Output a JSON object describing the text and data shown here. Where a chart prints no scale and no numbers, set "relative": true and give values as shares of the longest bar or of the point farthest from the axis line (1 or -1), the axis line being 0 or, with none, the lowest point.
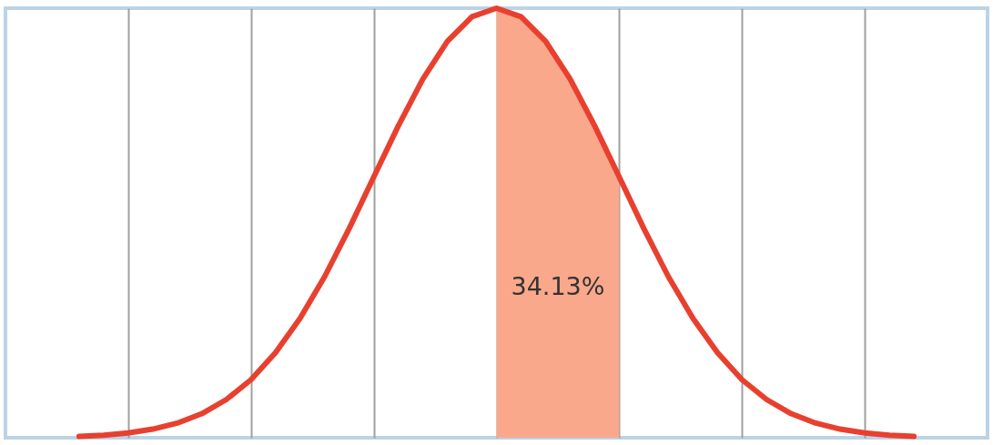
{
  "chart_data": {
    "type": "line",
    "relative": true,
    "categories": [
      null,
      null,
      null,
      null,
      null,
      null,
      null,
      null,
      null,
      null,
      null,
      null,
      null,
      null,
      null,
      null,
      null,
      null,
      null,
      null,
      null,
      null,
      null,
      null,
      null,
      null,
      null,
      null,
      null,
      null,
      null,
      null,
      null,
      null,
      null
    ],
    "tick_labels": false,
    "grid": "x",
    "series": [
      {
        "color": "#e8402f",
        "values": [
          0.003,
          0.006,
          0.011,
          0.02,
          0.034,
          0.056,
          0.089,
          0.135,
          0.198,
          0.278,
          0.375,
          0.487,
          0.607,
          0.726,
          0.835,
          0.923,
          0.98,
          1,
          0.98,
          0.923,
          0.835,
          0.726,
          0.607,
          0.487,
          0.375,
          0.278,
          0.198,
          0.135,
          0.089,
          0.056,
          0.034,
          0.02,
          0.011,
          0.006,
          0.003
        ]
      },
      {
        "type": "area",
        "color": "#f9a88c",
        "values": [
          null,
          null,
          null,
          null,
          null,
          null,
          null,
          null,
          null,
          null,
          null,
          null,
          null,
          null,
          null,
          null,
          null,
          1,
          0.98,
          0.923,
          0.835,
          0.726,
          0.607,
          null,
          null,
          null,
          null,
          null,
          null,
          null,
          null,
          null,
          null,
          null,
          null
        ]
      }
    ],
    "annotations": [
      "34.13%"
    ],
    "line_style": "solid"
  }
}
